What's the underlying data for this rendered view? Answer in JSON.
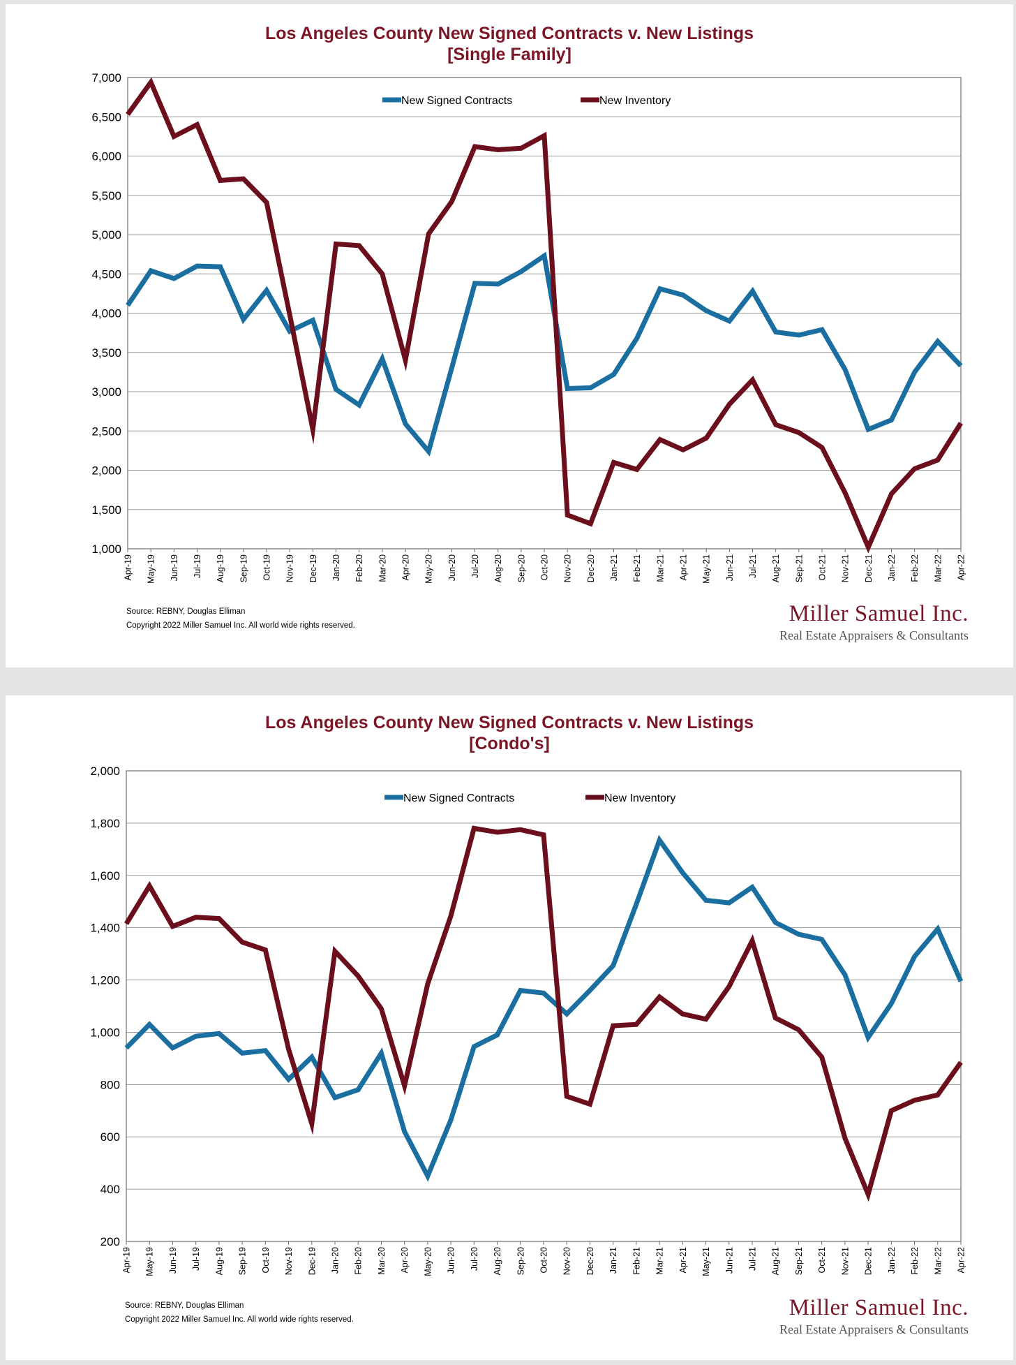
{
  "colors": {
    "contracts": "#1a6fa0",
    "inventory": "#6b0f1d",
    "title": "#7a1626"
  },
  "chart_data": [
    {
      "type": "line",
      "title": "Los Angeles County New Signed Contracts v. New Listings",
      "subtitle": "[Single Family]",
      "ylim": [
        1000,
        7000
      ],
      "yticks": [
        1000,
        1500,
        2000,
        2500,
        3000,
        3500,
        4000,
        4500,
        5000,
        5500,
        6000,
        6500,
        7000
      ],
      "grid": true,
      "legend": "top",
      "categories": [
        "Apr-19",
        "May-19",
        "Jun-19",
        "Jul-19",
        "Aug-19",
        "Sep-19",
        "Oct-19",
        "Nov-19",
        "Dec-19",
        "Jan-20",
        "Feb-20",
        "Mar-20",
        "Apr-20",
        "May-20",
        "Jun-20",
        "Jul-20",
        "Aug-20",
        "Sep-20",
        "Oct-20",
        "Nov-20",
        "Dec-20",
        "Jan-21",
        "Feb-21",
        "Mar-21",
        "Apr-21",
        "May-21",
        "Jun-21",
        "Jul-21",
        "Aug-21",
        "Sep-21",
        "Oct-21",
        "Nov-21",
        "Dec-21",
        "Jan-22",
        "Feb-22",
        "Mar-22",
        "Apr-22"
      ],
      "series": [
        {
          "name": "New Signed Contracts",
          "color": "#1a6fa0",
          "values": [
            4100,
            4540,
            4440,
            4600,
            4590,
            3920,
            4290,
            3770,
            3910,
            3030,
            2830,
            3420,
            2590,
            2240,
            3300,
            4380,
            4370,
            4530,
            4730,
            3040,
            3050,
            3220,
            3680,
            4310,
            4230,
            4030,
            3900,
            4280,
            3760,
            3720,
            3790,
            3280,
            2520,
            2640,
            3250,
            3640,
            3330
          ]
        },
        {
          "name": "New Inventory",
          "color": "#6b0f1d",
          "values": [
            6530,
            6940,
            6250,
            6400,
            5690,
            5710,
            5410,
            3980,
            2520,
            4880,
            4860,
            4500,
            3400,
            5010,
            5420,
            6120,
            6080,
            6100,
            6260,
            1430,
            1320,
            2100,
            2010,
            2390,
            2260,
            2410,
            2840,
            3150,
            2580,
            2480,
            2290,
            1710,
            1020,
            1700,
            2020,
            2130,
            2600
          ]
        }
      ],
      "source": "Source: REBNY, Douglas Elliman",
      "copyright": "Copyright 2022 Miller Samuel Inc.  All world wide rights reserved."
    },
    {
      "type": "line",
      "title": "Los Angeles County New Signed Contracts v. New Listings",
      "subtitle": "[Condo's]",
      "ylim": [
        200,
        2000
      ],
      "yticks": [
        200,
        400,
        600,
        800,
        1000,
        1200,
        1400,
        1600,
        1800,
        2000
      ],
      "grid": true,
      "legend": "top",
      "categories": [
        "Apr-19",
        "May-19",
        "Jun-19",
        "Jul-19",
        "Aug-19",
        "Sep-19",
        "Oct-19",
        "Nov-19",
        "Dec-19",
        "Jan-20",
        "Feb-20",
        "Mar-20",
        "Apr-20",
        "May-20",
        "Jun-20",
        "Jul-20",
        "Aug-20",
        "Sep-20",
        "Oct-20",
        "Nov-20",
        "Dec-20",
        "Jan-21",
        "Feb-21",
        "Mar-21",
        "Apr-21",
        "May-21",
        "Jun-21",
        "Jul-21",
        "Aug-21",
        "Sep-21",
        "Oct-21",
        "Nov-21",
        "Dec-21",
        "Jan-22",
        "Feb-22",
        "Mar-22",
        "Apr-22"
      ],
      "series": [
        {
          "name": "New Signed Contracts",
          "color": "#1a6fa0",
          "values": [
            940,
            1030,
            940,
            985,
            995,
            920,
            930,
            820,
            905,
            750,
            780,
            920,
            620,
            450,
            665,
            945,
            990,
            1160,
            1150,
            1070,
            1160,
            1255,
            1490,
            1735,
            1610,
            1505,
            1495,
            1555,
            1420,
            1375,
            1355,
            1220,
            980,
            1110,
            1290,
            1395,
            1195
          ]
        },
        {
          "name": "New Inventory",
          "color": "#6b0f1d",
          "values": [
            1415,
            1560,
            1405,
            1440,
            1435,
            1345,
            1315,
            935,
            650,
            1310,
            1215,
            1090,
            795,
            1185,
            1445,
            1780,
            1765,
            1775,
            1755,
            755,
            725,
            1025,
            1030,
            1135,
            1070,
            1050,
            1175,
            1350,
            1055,
            1010,
            905,
            595,
            380,
            700,
            740,
            760,
            885
          ]
        }
      ],
      "source": "Source: REBNY, Douglas Elliman",
      "copyright": "Copyright 2022 Miller Samuel Inc.  All world wide rights reserved."
    }
  ],
  "brand": {
    "name": "Miller Samuel Inc.",
    "tagline": "Real Estate Appraisers & Consultants"
  }
}
